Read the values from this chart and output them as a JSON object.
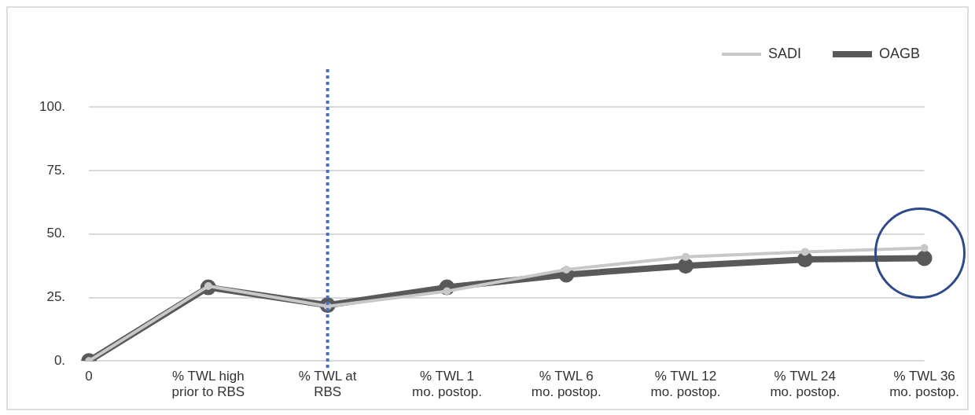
{
  "chart_data": {
    "type": "line",
    "categories": [
      "0",
      "% TWL high\nprior to RBS",
      "% TWL at\nRBS",
      "% TWL 1\nmo. postop.",
      "% TWL 6\nmo. postop.",
      "% TWL 12\nmo. postop.",
      "% TWL 24\nmo. postop.",
      "% TWL 36\nmo. postop."
    ],
    "series": [
      {
        "name": "OAGB",
        "color": "#595959",
        "values": [
          0,
          29,
          22,
          29,
          34,
          37.5,
          40,
          40.5
        ]
      },
      {
        "name": "SADI",
        "color": "#c8c8c8",
        "values": [
          0,
          29.5,
          21.5,
          27.5,
          36,
          41,
          43,
          44.5
        ]
      }
    ],
    "ylim": [
      0,
      115
    ],
    "yticks": [
      {
        "value": 0,
        "label": "0."
      },
      {
        "value": 25,
        "label": "25."
      },
      {
        "value": 50,
        "label": "50."
      },
      {
        "value": 75,
        "label": "75."
      },
      {
        "value": 100,
        "label": "100."
      }
    ],
    "grid": "y",
    "legend": "top right",
    "marker": "circle",
    "line_style": "solid",
    "ref_lines": [
      {
        "axis": "x",
        "value": "% TWL at\nRBS",
        "color": "#4472c4",
        "line_style": "dotted"
      }
    ]
  }
}
